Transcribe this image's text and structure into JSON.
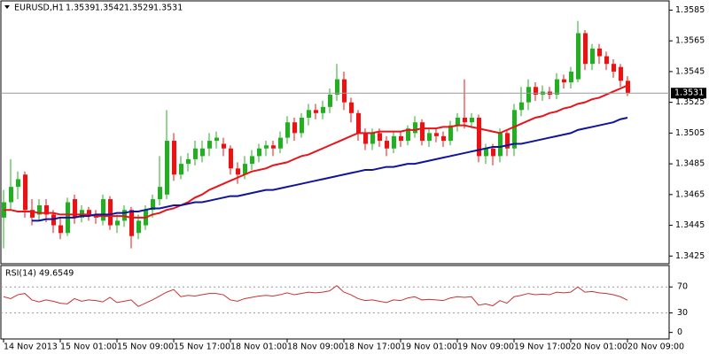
{
  "chart_data": {
    "type": "candlestick",
    "symbol": "EURUSD,H1",
    "up_color": "#22b022",
    "down_color": "#ee1111",
    "price_line_color": "#999999",
    "open": [
      1.345,
      1.346,
      1.347,
      1.3478,
      1.3455,
      1.3452,
      1.3458,
      1.3452,
      1.3445,
      1.344,
      1.3462,
      1.345,
      1.3455,
      1.3452,
      1.3448,
      1.3462,
      1.3445,
      1.3448,
      1.3455,
      1.344,
      1.3445,
      1.3455,
      1.3462,
      1.3465,
      1.35,
      1.3478,
      1.3485,
      1.3488,
      1.349,
      1.3495,
      1.35,
      1.3498,
      1.3495,
      1.3482,
      1.3478,
      1.3485,
      1.349,
      1.3495,
      1.3497,
      1.3495,
      1.3502,
      1.3512,
      1.3505,
      1.3515,
      1.352,
      1.3518,
      1.3522,
      1.353,
      1.354,
      1.3525,
      1.3518,
      1.3505,
      1.3498,
      1.3505,
      1.35,
      1.3495,
      1.3503,
      1.35,
      1.3505,
      1.3512,
      1.35,
      1.3505,
      1.3503,
      1.35,
      1.351,
      1.3515,
      1.3512,
      1.3515,
      1.349,
      1.3495,
      1.349,
      1.3505,
      1.3495,
      1.352,
      1.3525,
      1.3535,
      1.353,
      1.3532,
      1.353,
      1.354,
      1.3538,
      1.354,
      1.357,
      1.355,
      1.356,
      1.3555,
      1.355,
      1.3548,
      1.3539
    ],
    "high": [
      1.3468,
      1.3488,
      1.348,
      1.348,
      1.3462,
      1.3462,
      1.3462,
      1.3455,
      1.345,
      1.3463,
      1.3465,
      1.3458,
      1.3457,
      1.3455,
      1.3465,
      1.3464,
      1.3452,
      1.3458,
      1.3457,
      1.3452,
      1.3458,
      1.3465,
      1.349,
      1.352,
      1.3505,
      1.349,
      1.3492,
      1.35,
      1.35,
      1.3505,
      1.3506,
      1.3502,
      1.3497,
      1.3486,
      1.349,
      1.3494,
      1.3498,
      1.35,
      1.35,
      1.3506,
      1.3516,
      1.3515,
      1.3518,
      1.3524,
      1.3524,
      1.3526,
      1.3534,
      1.355,
      1.3545,
      1.3528,
      1.352,
      1.3508,
      1.3508,
      1.3508,
      1.3503,
      1.3506,
      1.3506,
      1.351,
      1.3516,
      1.3514,
      1.3508,
      1.3508,
      1.3506,
      1.3513,
      1.3518,
      1.354,
      1.3518,
      1.3517,
      1.3498,
      1.3498,
      1.3508,
      1.3507,
      1.3524,
      1.3535,
      1.354,
      1.3538,
      1.3536,
      1.3535,
      1.3544,
      1.3543,
      1.3548,
      1.3578,
      1.3572,
      1.3563,
      1.3563,
      1.3558,
      1.3553,
      1.355,
      1.3542
    ],
    "low": [
      1.343,
      1.3455,
      1.3462,
      1.345,
      1.3445,
      1.3448,
      1.3447,
      1.344,
      1.3436,
      1.3438,
      1.3446,
      1.3447,
      1.3448,
      1.3446,
      1.3445,
      1.3442,
      1.344,
      1.3444,
      1.343,
      1.3436,
      1.3442,
      1.345,
      1.3458,
      1.3462,
      1.3474,
      1.3475,
      1.348,
      1.3484,
      1.3486,
      1.349,
      1.3495,
      1.349,
      1.3478,
      1.3472,
      1.3475,
      1.3481,
      1.3486,
      1.349,
      1.349,
      1.3492,
      1.3498,
      1.35,
      1.3502,
      1.351,
      1.3514,
      1.3514,
      1.3518,
      1.3526,
      1.352,
      1.3512,
      1.35,
      1.3494,
      1.3494,
      1.3496,
      1.349,
      1.3492,
      1.3496,
      1.3497,
      1.3502,
      1.3497,
      1.3496,
      1.3499,
      1.3496,
      1.3497,
      1.3506,
      1.3508,
      1.3508,
      1.3486,
      1.3485,
      1.3484,
      1.3486,
      1.349,
      1.349,
      1.3516,
      1.352,
      1.3526,
      1.3526,
      1.3527,
      1.3527,
      1.3534,
      1.3534,
      1.3538,
      1.3546,
      1.3546,
      1.355,
      1.3546,
      1.3541,
      1.3535,
      1.3529
    ],
    "close": [
      1.346,
      1.347,
      1.3475,
      1.3455,
      1.345,
      1.3458,
      1.3452,
      1.3445,
      1.344,
      1.346,
      1.345,
      1.3455,
      1.3452,
      1.345,
      1.3462,
      1.3445,
      1.3448,
      1.3455,
      1.3438,
      1.3448,
      1.3455,
      1.3462,
      1.347,
      1.35,
      1.3478,
      1.3485,
      1.3488,
      1.3495,
      1.3495,
      1.35,
      1.3502,
      1.3495,
      1.3482,
      1.3478,
      1.3485,
      1.349,
      1.3495,
      1.3497,
      1.3495,
      1.3502,
      1.3512,
      1.3505,
      1.3515,
      1.352,
      1.3518,
      1.3522,
      1.353,
      1.354,
      1.3525,
      1.3518,
      1.3505,
      1.3498,
      1.3505,
      1.35,
      1.3495,
      1.3503,
      1.35,
      1.3508,
      1.3512,
      1.35,
      1.3505,
      1.3503,
      1.35,
      1.351,
      1.3515,
      1.3512,
      1.3515,
      1.349,
      1.3495,
      1.349,
      1.3505,
      1.3495,
      1.352,
      1.3525,
      1.3535,
      1.353,
      1.3532,
      1.353,
      1.354,
      1.3538,
      1.3545,
      1.357,
      1.355,
      1.356,
      1.3555,
      1.355,
      1.3545,
      1.3539,
      1.3531
    ],
    "ma": [
      {
        "color": "#e8141a",
        "values": [
          1.3455,
          1.3455,
          1.3454,
          1.3454,
          1.3454,
          1.3453,
          1.3453,
          1.3453,
          1.3452,
          1.3452,
          1.3452,
          1.3452,
          1.3452,
          1.3451,
          1.3451,
          1.3451,
          1.3451,
          1.3451,
          1.345,
          1.345,
          1.345,
          1.3452,
          1.3453,
          1.3455,
          1.3456,
          1.3458,
          1.346,
          1.3463,
          1.3465,
          1.3468,
          1.347,
          1.3472,
          1.3474,
          1.3476,
          1.3478,
          1.348,
          1.3481,
          1.3482,
          1.3484,
          1.3485,
          1.3486,
          1.3488,
          1.349,
          1.3491,
          1.3493,
          1.3495,
          1.3497,
          1.3499,
          1.3501,
          1.3503,
          1.3505,
          1.3505,
          1.3505,
          1.3506,
          1.3506,
          1.3506,
          1.3506,
          1.3507,
          1.3507,
          1.3508,
          1.3508,
          1.3508,
          1.3509,
          1.3509,
          1.351,
          1.351,
          1.3509,
          1.3508,
          1.3507,
          1.3506,
          1.3505,
          1.3507,
          1.3509,
          1.3511,
          1.3513,
          1.3515,
          1.3516,
          1.3518,
          1.3519,
          1.3521,
          1.3522,
          1.3524,
          1.3525,
          1.3527,
          1.3528,
          1.353,
          1.3532,
          1.3534,
          1.3536
        ]
      },
      {
        "color": "#10149a",
        "values": [
          null,
          null,
          null,
          null,
          1.3448,
          1.3448,
          1.3449,
          1.3449,
          1.345,
          1.345,
          1.345,
          1.3451,
          1.3451,
          1.3452,
          1.3452,
          1.3452,
          1.3453,
          1.3453,
          1.3454,
          1.3454,
          1.3455,
          1.3456,
          1.3456,
          1.3457,
          1.3458,
          1.3458,
          1.3459,
          1.346,
          1.346,
          1.3461,
          1.3462,
          1.3463,
          1.3464,
          1.3464,
          1.3465,
          1.3466,
          1.3467,
          1.3468,
          1.3468,
          1.3469,
          1.347,
          1.3471,
          1.3472,
          1.3473,
          1.3474,
          1.3475,
          1.3476,
          1.3477,
          1.3478,
          1.3479,
          1.348,
          1.3481,
          1.3481,
          1.3482,
          1.3483,
          1.3483,
          1.3484,
          1.3485,
          1.3485,
          1.3486,
          1.3487,
          1.3488,
          1.3489,
          1.349,
          1.3491,
          1.3492,
          1.3493,
          1.3494,
          1.3495,
          1.3496,
          1.3496,
          1.3497,
          1.3498,
          1.3498,
          1.3499,
          1.35,
          1.3501,
          1.3502,
          1.3503,
          1.3504,
          1.3505,
          1.3507,
          1.3508,
          1.3509,
          1.351,
          1.3511,
          1.3512,
          1.3514,
          1.3515
        ]
      }
    ],
    "ylim": [
      1.342,
      1.3591
    ],
    "yticks": [
      1.3425,
      1.3445,
      1.3465,
      1.3485,
      1.3505,
      1.3525,
      1.3545,
      1.3565,
      1.3585
    ],
    "xticks": [
      {
        "value": 0,
        "label": "14 Nov 2013"
      },
      {
        "value": 8,
        "label": "15 Nov 01:00"
      },
      {
        "value": 16,
        "label": "15 Nov 09:00"
      },
      {
        "value": 24,
        "label": "15 Nov 17:00"
      },
      {
        "value": 32,
        "label": "18 Nov 01:00"
      },
      {
        "value": 40,
        "label": "18 Nov 09:00"
      },
      {
        "value": 48,
        "label": "18 Nov 17:00"
      },
      {
        "value": 56,
        "label": "19 Nov 01:00"
      },
      {
        "value": 64,
        "label": "19 Nov 09:00"
      },
      {
        "value": 72,
        "label": "19 Nov 17:00"
      },
      {
        "value": 80,
        "label": "20 Nov 01:00"
      },
      {
        "value": 88,
        "label": "20 Nov 09:00"
      }
    ],
    "rsi": {
      "name": "RSI(14)",
      "color": "#c83232",
      "values": [
        55,
        52,
        58,
        60,
        50,
        47,
        50,
        48,
        45,
        44,
        52,
        48,
        50,
        49,
        47,
        54,
        46,
        48,
        50,
        40,
        45,
        50,
        56,
        62,
        66,
        55,
        57,
        56,
        58,
        60,
        60,
        58,
        50,
        48,
        52,
        54,
        56,
        57,
        56,
        58,
        61,
        58,
        60,
        62,
        61,
        62,
        64,
        72,
        62,
        58,
        52,
        49,
        50,
        48,
        46,
        50,
        49,
        53,
        55,
        50,
        51,
        50,
        49,
        53,
        55,
        54,
        55,
        42,
        44,
        41,
        49,
        45,
        55,
        57,
        60,
        58,
        59,
        58,
        62,
        61,
        62,
        70,
        62,
        63,
        61,
        60,
        58,
        55,
        49.6549
      ],
      "ylim": [
        -10,
        103
      ],
      "yticks": [
        0,
        30,
        70
      ],
      "levels": [
        30,
        70
      ]
    }
  }
}
